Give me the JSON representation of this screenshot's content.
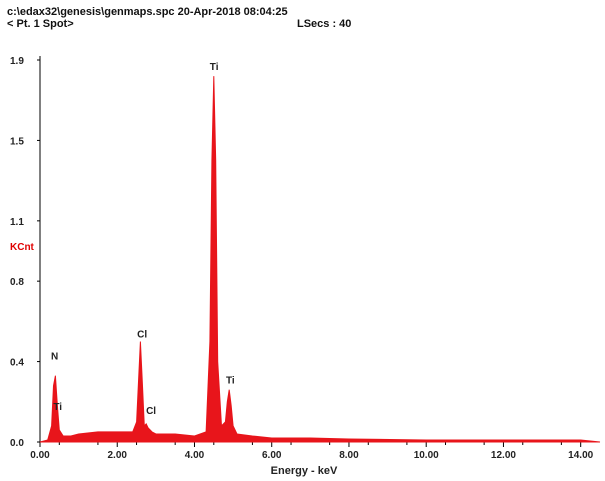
{
  "header": {
    "path": "c:\\edax32\\genesis\\genmaps.spc",
    "datetime": "20-Apr-2018 08:04:25",
    "spot": "< Pt. 1 Spot>",
    "lsecs": "LSecs : 40"
  },
  "colors": {
    "spectrum": "#e8151b",
    "ylabel": "#e00000",
    "axis": "#000000"
  },
  "chart_data": {
    "type": "area",
    "xlabel": "Energy - keV",
    "ylabel": "KCnt",
    "xlim": [
      0,
      14.5
    ],
    "ylim": [
      0,
      1.9
    ],
    "x_ticks": [
      0,
      2,
      4,
      6,
      8,
      10,
      12,
      14
    ],
    "x_tick_labels": [
      "0.00",
      "2.00",
      "4.00",
      "6.00",
      "8.00",
      "10.00",
      "12.00",
      "14.00"
    ],
    "y_ticks": [
      0.0,
      0.4,
      0.8,
      1.1,
      1.5,
      1.9
    ],
    "y_tick_labels": [
      "0.0",
      "0.4",
      "0.8",
      "1.1",
      "1.5",
      "1.9"
    ],
    "series": [
      {
        "x": [
          0.0,
          0.2,
          0.3,
          0.35,
          0.4,
          0.45,
          0.5,
          0.6,
          0.8,
          1.0,
          1.5,
          2.0,
          2.4,
          2.5,
          2.55,
          2.6,
          2.65,
          2.7,
          2.75,
          2.8,
          2.9,
          3.0,
          3.5,
          4.0,
          4.3,
          4.4,
          4.45,
          4.5,
          4.55,
          4.6,
          4.7,
          4.8,
          4.85,
          4.9,
          4.95,
          5.0,
          5.1,
          5.5,
          6.0,
          7.0,
          8.0,
          10.0,
          12.0,
          14.0,
          14.5
        ],
        "y": [
          0.0,
          0.01,
          0.08,
          0.28,
          0.33,
          0.18,
          0.06,
          0.03,
          0.03,
          0.04,
          0.05,
          0.05,
          0.05,
          0.1,
          0.3,
          0.5,
          0.3,
          0.08,
          0.09,
          0.07,
          0.05,
          0.04,
          0.04,
          0.03,
          0.05,
          0.5,
          1.4,
          1.82,
          1.4,
          0.4,
          0.08,
          0.1,
          0.2,
          0.26,
          0.18,
          0.08,
          0.04,
          0.03,
          0.02,
          0.02,
          0.015,
          0.01,
          0.01,
          0.01,
          0.0
        ]
      }
    ],
    "annotations": [
      {
        "text": "N",
        "x": 0.39,
        "y": 0.4
      },
      {
        "text": "Ti",
        "x": 0.45,
        "y": 0.15
      },
      {
        "text": "Cl",
        "x": 2.62,
        "y": 0.51
      },
      {
        "text": "Cl",
        "x": 2.85,
        "y": 0.13
      },
      {
        "text": "Ti",
        "x": 4.5,
        "y": 1.84
      },
      {
        "text": "Ti",
        "x": 4.92,
        "y": 0.28
      }
    ]
  }
}
